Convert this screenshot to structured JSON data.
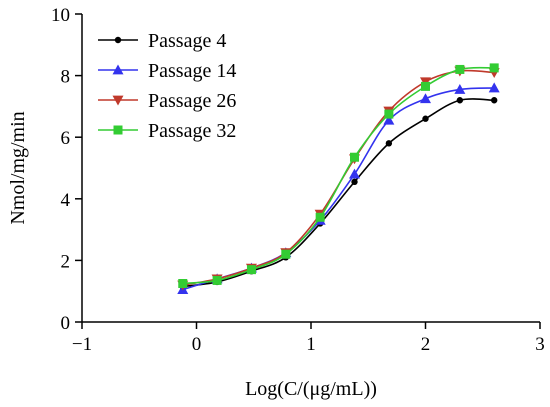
{
  "chart_data": {
    "type": "line",
    "title": "",
    "xlabel": "Log(C/(μg/mL))",
    "ylabel": "Nmol/mg/min",
    "xlim": [
      -1,
      3
    ],
    "ylim": [
      0,
      10
    ],
    "xticks": [
      -1,
      0,
      1,
      2,
      3
    ],
    "yticks": [
      0,
      2,
      4,
      6,
      8,
      10
    ],
    "xtick_labels": [
      "−1",
      "0",
      "1",
      "2",
      "3"
    ],
    "ytick_labels": [
      "0",
      "2",
      "4",
      "6",
      "8",
      "10"
    ],
    "grid": false,
    "legend_position": "top-left",
    "x": [
      -0.12,
      0.18,
      0.48,
      0.78,
      1.08,
      1.38,
      1.68,
      2.0,
      2.3,
      2.6
    ],
    "series": [
      {
        "name": "Passage 4",
        "marker": "circle",
        "color": "#000000",
        "values": [
          1.15,
          1.3,
          1.65,
          2.1,
          3.2,
          4.55,
          5.8,
          6.6,
          7.2,
          7.2
        ]
      },
      {
        "name": "Passage 14",
        "marker": "triangle-up",
        "color": "#3333ee",
        "values": [
          1.05,
          1.4,
          1.75,
          2.25,
          3.3,
          4.8,
          6.55,
          7.25,
          7.55,
          7.6
        ]
      },
      {
        "name": "Passage 26",
        "marker": "triangle-down",
        "color": "#c0392b",
        "values": [
          1.2,
          1.4,
          1.75,
          2.25,
          3.5,
          5.3,
          6.85,
          7.8,
          8.15,
          8.1
        ]
      },
      {
        "name": "Passage 32",
        "marker": "square",
        "color": "#33cc33",
        "values": [
          1.25,
          1.35,
          1.7,
          2.2,
          3.4,
          5.35,
          6.75,
          7.65,
          8.2,
          8.25
        ]
      }
    ]
  }
}
